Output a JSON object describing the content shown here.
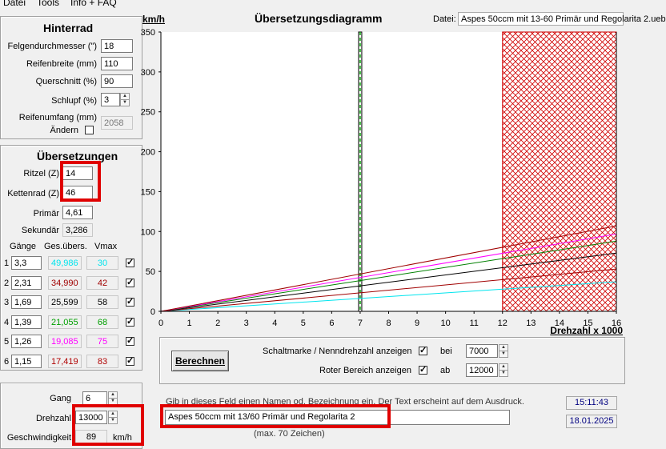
{
  "menu": {
    "items": [
      "Datei",
      "Tools",
      "Info + FAQ"
    ]
  },
  "hinterrad": {
    "title": "Hinterrad",
    "felgen_label": "Felgendurchmesser (\")",
    "felgen_value": "18",
    "reifenbreite_label": "Reifenbreite (mm)",
    "reifenbreite_value": "110",
    "querschnitt_label": "Querschnitt (%)",
    "querschnitt_value": "90",
    "schlupf_label": "Schlupf (%)",
    "schlupf_value": "3",
    "umfang_label": "Reifenumfang (mm)",
    "aendern_label": "Ändern",
    "umfang_value": "2058"
  },
  "uebersetzungen": {
    "title": "Übersetzungen",
    "ritzel_label": "Ritzel (Z)",
    "ritzel_value": "14",
    "kettenrad_label": "Kettenrad (Z)",
    "kettenrad_value": "46",
    "primaer_label": "Primär",
    "primaer_value": "4,61",
    "sekundaer_label": "Sekundär",
    "sekundaer_value": "3,286",
    "col_gaenge": "Gänge",
    "col_ges": "Ges.übers.",
    "col_vmax": "Vmax",
    "gears": [
      {
        "num": "1",
        "ratio": "3,3",
        "ges": "49,986",
        "vmax": "30",
        "color": "#00e5ee"
      },
      {
        "num": "2",
        "ratio": "2,31",
        "ges": "34,990",
        "vmax": "42",
        "color": "#a00000"
      },
      {
        "num": "3",
        "ratio": "1,69",
        "ges": "25,599",
        "vmax": "58",
        "color": "#000000"
      },
      {
        "num": "4",
        "ratio": "1,39",
        "ges": "21,055",
        "vmax": "68",
        "color": "#00a000"
      },
      {
        "num": "5",
        "ratio": "1,26",
        "ges": "19,085",
        "vmax": "75",
        "color": "#ff00ff"
      },
      {
        "num": "6",
        "ratio": "1,15",
        "ges": "17,419",
        "vmax": "83",
        "color": "#b00000"
      }
    ]
  },
  "bottom_left": {
    "gang_label": "Gang",
    "gang_value": "6",
    "drehzahl_label": "Drehzahl",
    "drehzahl_value": "13000",
    "geschw_label": "Geschwindigkeit",
    "geschw_value": "89",
    "geschw_unit": "km/h"
  },
  "header": {
    "ylabel": "km/h",
    "title": "Übersetzungsdiagramm",
    "datei_label": "Datei:",
    "datei_value": "Aspes 50ccm mit 13-60 Primär und Regolarita 2.ueb"
  },
  "chart_data": {
    "type": "line",
    "title": "Übersetzungsdiagramm",
    "xlabel": "Drehzahl x 1000",
    "ylabel": "km/h",
    "xlim": [
      0,
      16
    ],
    "ylim": [
      0,
      350
    ],
    "x_ticks": [
      "0",
      "1",
      "2",
      "3",
      "4",
      "5",
      "6",
      "7",
      "8",
      "9",
      "10",
      "11",
      "12",
      "13",
      "14",
      "15",
      "16"
    ],
    "y_ticks": [
      "0",
      "50",
      "100",
      "150",
      "200",
      "250",
      "300",
      "350"
    ],
    "series": [
      {
        "color": "#00e5ee",
        "x": [
          0,
          16
        ],
        "y": [
          0,
          37
        ]
      },
      {
        "color": "#a00000",
        "x": [
          0,
          16
        ],
        "y": [
          0,
          53
        ]
      },
      {
        "color": "#000000",
        "x": [
          0,
          16
        ],
        "y": [
          0,
          73
        ]
      },
      {
        "color": "#008000",
        "x": [
          0,
          16
        ],
        "y": [
          0,
          88
        ]
      },
      {
        "color": "#ff00ff",
        "x": [
          0,
          16
        ],
        "y": [
          0,
          97
        ]
      },
      {
        "color": "#a00000",
        "x": [
          0,
          16
        ],
        "y": [
          0,
          107
        ]
      }
    ],
    "nenndrehzahl_marker": 7,
    "red_zone_from": 12
  },
  "controls": {
    "berechnen_label": "Berechnen",
    "schaltmarke_label": "Schaltmarke / Nenndrehzahl anzeigen",
    "bei_label": "bei",
    "bei_value": "7000",
    "roter_label": "Roter Bereich anzeigen",
    "ab_label": "ab",
    "ab_value": "12000",
    "name_hint": "Gib in dieses Feld einen Namen od. Bezeichnung ein. Der Text erscheint auf dem Ausdruck.",
    "name_value": "Aspes 50ccm mit 13/60 Primär und Regolarita 2",
    "max_hint": "(max. 70 Zeichen)",
    "time": "15:11:43",
    "date": "18.01.2025"
  }
}
